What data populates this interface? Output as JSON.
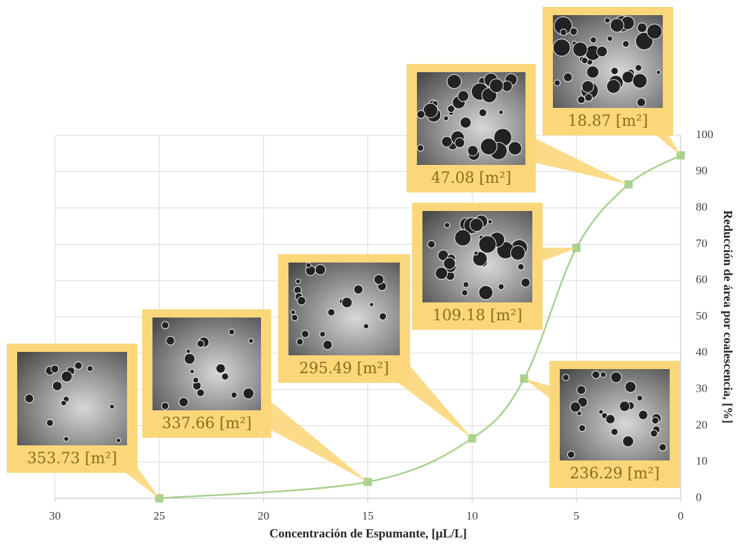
{
  "chart_data": {
    "type": "line",
    "x_label": "Concentración de Espumante, [µL/L]",
    "y_label": "Reducción de área por coalescencia, [%]",
    "xlim": [
      30,
      0
    ],
    "xticks": [
      30,
      25,
      20,
      15,
      10,
      5,
      0
    ],
    "ylim": [
      0,
      100
    ],
    "yticks": [
      0,
      10,
      20,
      30,
      40,
      50,
      60,
      70,
      80,
      90,
      100
    ],
    "grid": true,
    "x": [
      25,
      15,
      10,
      7.5,
      5,
      2.5,
      0
    ],
    "series": [
      {
        "color": "#a9d18e",
        "values": [
          0,
          4.5,
          16.5,
          33,
          69,
          86.5,
          94.5
        ]
      }
    ],
    "annotations": [
      "353.73 [m²]",
      "337.66 [m²]",
      "295.49 [m²]",
      "236.29 [m²]",
      "109.18 [m²]",
      "47.08 [m²]",
      "18.87 [m²]"
    ]
  }
}
